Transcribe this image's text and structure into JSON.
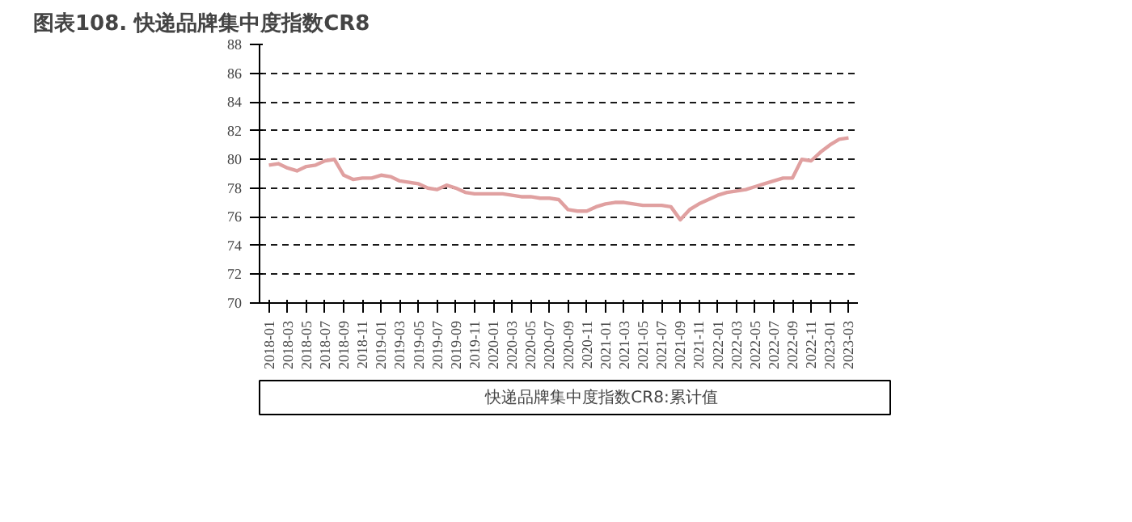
{
  "chart_data": {
    "type": "line",
    "title": "图表108. 快递品牌集中度指数CR8",
    "categories": [
      "2018-01",
      null,
      "2018-03",
      null,
      "2018-05",
      null,
      "2018-07",
      null,
      "2018-09",
      null,
      "2018-11",
      null,
      "2019-01",
      null,
      "2019-03",
      null,
      "2019-05",
      null,
      "2019-07",
      null,
      "2019-09",
      null,
      "2019-11",
      null,
      "2020-01",
      null,
      "2020-03",
      null,
      "2020-05",
      null,
      "2020-07",
      null,
      "2020-09",
      null,
      "2020-11",
      null,
      "2021-01",
      null,
      "2021-03",
      null,
      "2021-05",
      null,
      "2021-07",
      null,
      "2021-09",
      null,
      "2021-11",
      null,
      "2022-01",
      null,
      "2022-03",
      null,
      "2022-05",
      null,
      "2022-07",
      null,
      "2022-09",
      null,
      "2022-11",
      null,
      "2023-01",
      null,
      "2023-03"
    ],
    "series": [
      {
        "name": "快递品牌集中度指数CR8:累计值",
        "color": "#e0a0a0",
        "values": [
          79.6,
          79.7,
          79.4,
          79.2,
          79.5,
          79.6,
          79.9,
          80.0,
          78.9,
          78.6,
          78.7,
          78.7,
          78.9,
          78.8,
          78.5,
          78.4,
          78.3,
          78.0,
          77.9,
          78.2,
          78.0,
          77.7,
          77.6,
          77.6,
          77.6,
          77.6,
          77.5,
          77.4,
          77.4,
          77.3,
          77.3,
          77.2,
          76.5,
          76.4,
          76.4,
          76.7,
          76.9,
          77.0,
          77.0,
          76.9,
          76.8,
          76.8,
          76.8,
          76.7,
          75.8,
          76.5,
          76.9,
          77.2,
          77.5,
          77.7,
          77.8,
          77.9,
          78.1,
          78.3,
          78.5,
          78.7,
          78.7,
          80.0,
          79.9,
          80.5,
          81.0,
          81.4,
          81.5
        ]
      }
    ],
    "ylim": [
      70,
      88
    ],
    "yticks": [
      70,
      72,
      74,
      76,
      78,
      80,
      82,
      84,
      86,
      88
    ],
    "grid": "y",
    "legend": "bottom",
    "line_style": "solid"
  }
}
